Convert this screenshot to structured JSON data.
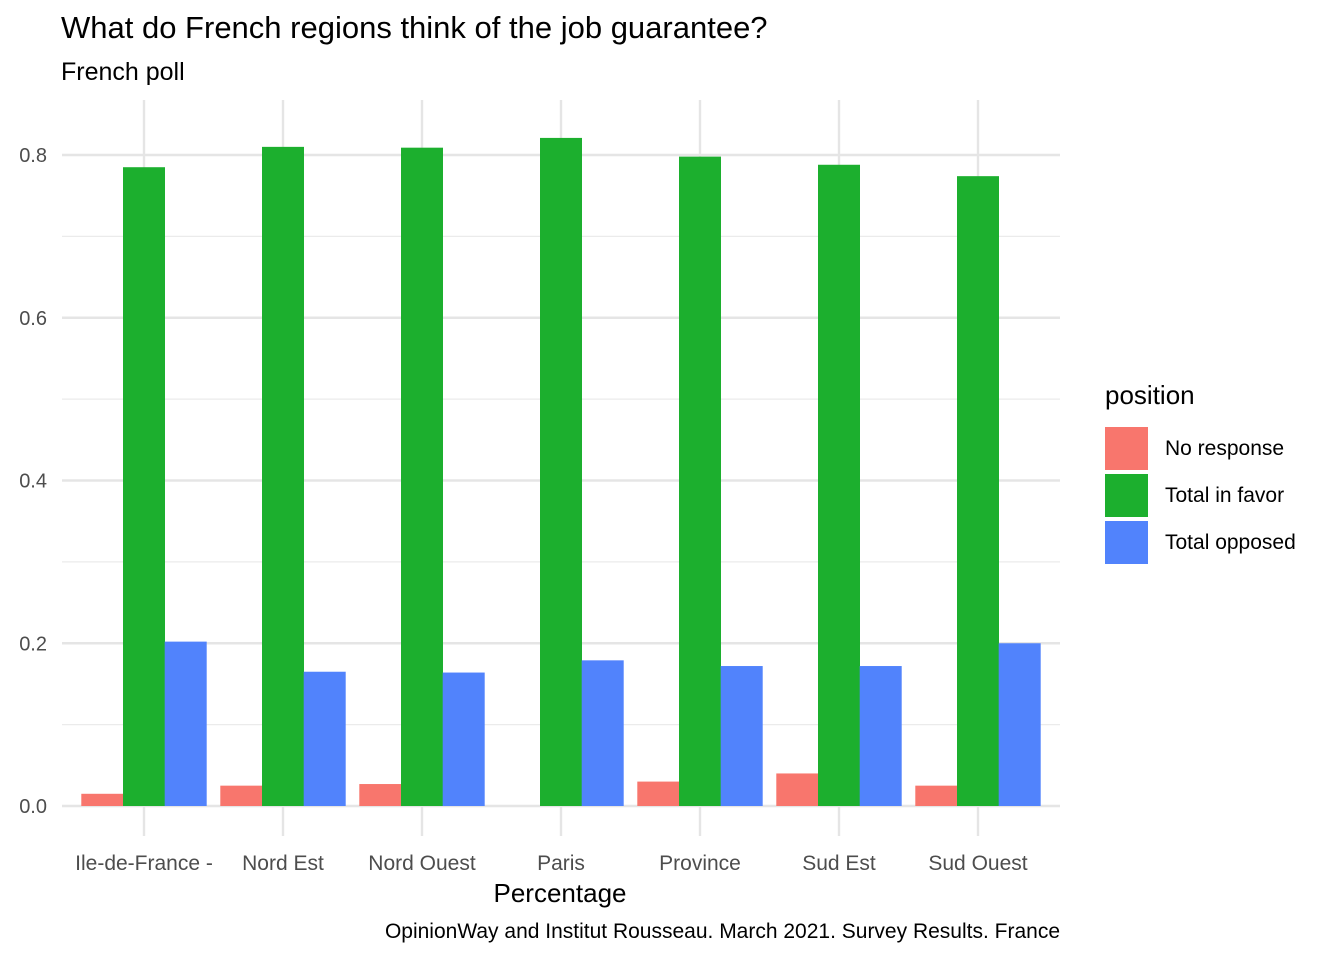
{
  "chart_data": {
    "type": "bar",
    "title": "What do French regions think of the job guarantee?",
    "subtitle": "French poll",
    "caption": "OpinionWay and Institut Rousseau. March 2021. Survey Results. France",
    "xlabel": "Percentage",
    "ylabel": "",
    "ylim": [
      0,
      0.85
    ],
    "yticks": [
      0.0,
      0.2,
      0.4,
      0.6,
      0.8
    ],
    "ytick_labels": [
      "0.0",
      "0.2",
      "0.4",
      "0.6",
      "0.8"
    ],
    "grid": true,
    "legend_position": "right",
    "legend_title": "position",
    "categories": [
      "Ile-de-France -",
      "Nord Est",
      "Nord Ouest",
      "Paris",
      "Province",
      "Sud Est",
      "Sud Ouest"
    ],
    "series": [
      {
        "name": "No response",
        "color": "#F8766D",
        "values": [
          0.015,
          0.025,
          0.027,
          0.0,
          0.03,
          0.04,
          0.025
        ]
      },
      {
        "name": "Total in favor",
        "color": "#1CAF2E",
        "values": [
          0.785,
          0.81,
          0.809,
          0.821,
          0.798,
          0.788,
          0.774
        ]
      },
      {
        "name": "Total opposed",
        "color": "#5183FC",
        "values": [
          0.202,
          0.165,
          0.164,
          0.179,
          0.172,
          0.172,
          0.2
        ]
      }
    ]
  }
}
